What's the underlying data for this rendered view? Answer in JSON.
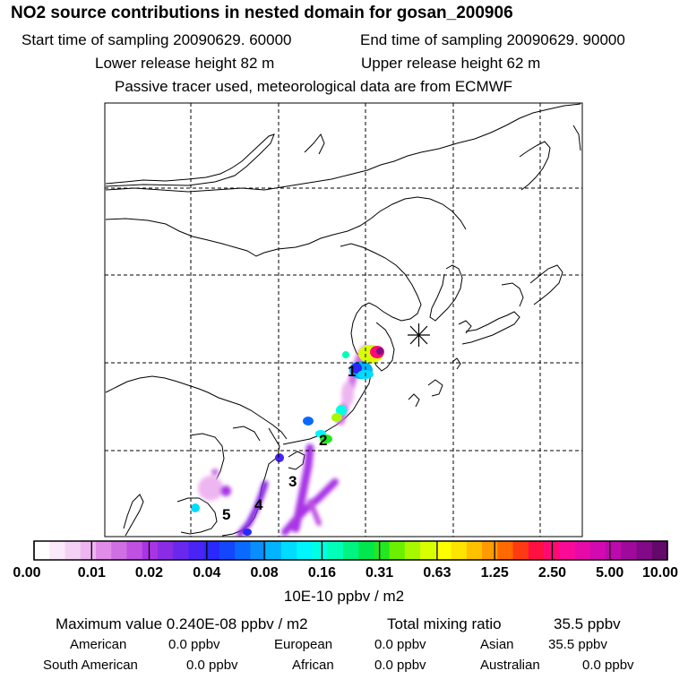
{
  "header": {
    "title": "NO2 source contributions in nested domain for gosan_200906",
    "start_label": "Start time of sampling 20090629. 60000",
    "end_label": "End time of sampling 20090629. 90000",
    "lower_label": "Lower release height   82 m",
    "upper_label": "Upper release height   62 m",
    "tracer_label": "Passive tracer used, meteorological data are from ECMWF"
  },
  "map": {
    "region_labels": [
      "1",
      "2",
      "3",
      "4",
      "5"
    ]
  },
  "chart_data": {
    "type": "heatmap",
    "title": "NO2 source contributions in nested domain for gosan_200906",
    "colorbar": {
      "tick_labels": [
        "0.00",
        "0.01",
        "0.02",
        "0.04",
        "0.08",
        "0.16",
        "0.31",
        "0.63",
        "1.25",
        "2.50",
        "5.00",
        "10.00"
      ],
      "unit_label": "10E-10 ppbv / m2",
      "colors": [
        "#ffffff",
        "#fbe8fb",
        "#f5d0f5",
        "#eeb6f0",
        "#e08ce8",
        "#d06ee4",
        "#bf50e2",
        "#a934e6",
        "#8a2ce6",
        "#6a28ee",
        "#4a24f6",
        "#2a28fe",
        "#1446fe",
        "#0a6aff",
        "#0a8eff",
        "#00b4ff",
        "#00dcff",
        "#00f6ff",
        "#00ffe2",
        "#00ffb8",
        "#00f482",
        "#00e84e",
        "#22e820",
        "#6cf000",
        "#a8f800",
        "#d8ff00",
        "#ffff00",
        "#ffe400",
        "#ffc000",
        "#ff9a00",
        "#ff6a00",
        "#ff3a12",
        "#ff1040",
        "#ff0a74",
        "#fa0a96",
        "#e80aa8",
        "#d20ab0",
        "#bc0aac",
        "#a00a9c",
        "#820a88",
        "#64086c"
      ]
    },
    "legend": "bottom"
  },
  "footer": {
    "max_label": "Maximum value  0.240E-08 ppbv / m2",
    "total_label": "Total mixing ratio",
    "total_value": "35.5 ppbv",
    "american_label": "American",
    "american_value": "0.0 ppbv",
    "european_label": "European",
    "european_value": "0.0 ppbv",
    "asian_label": "Asian",
    "asian_value": "35.5 ppbv",
    "south_american_label": "South American",
    "south_american_value": "0.0 ppbv",
    "african_label": "African",
    "african_value": "0.0 ppbv",
    "australian_label": "Australian",
    "australian_value": "0.0 ppbv"
  }
}
